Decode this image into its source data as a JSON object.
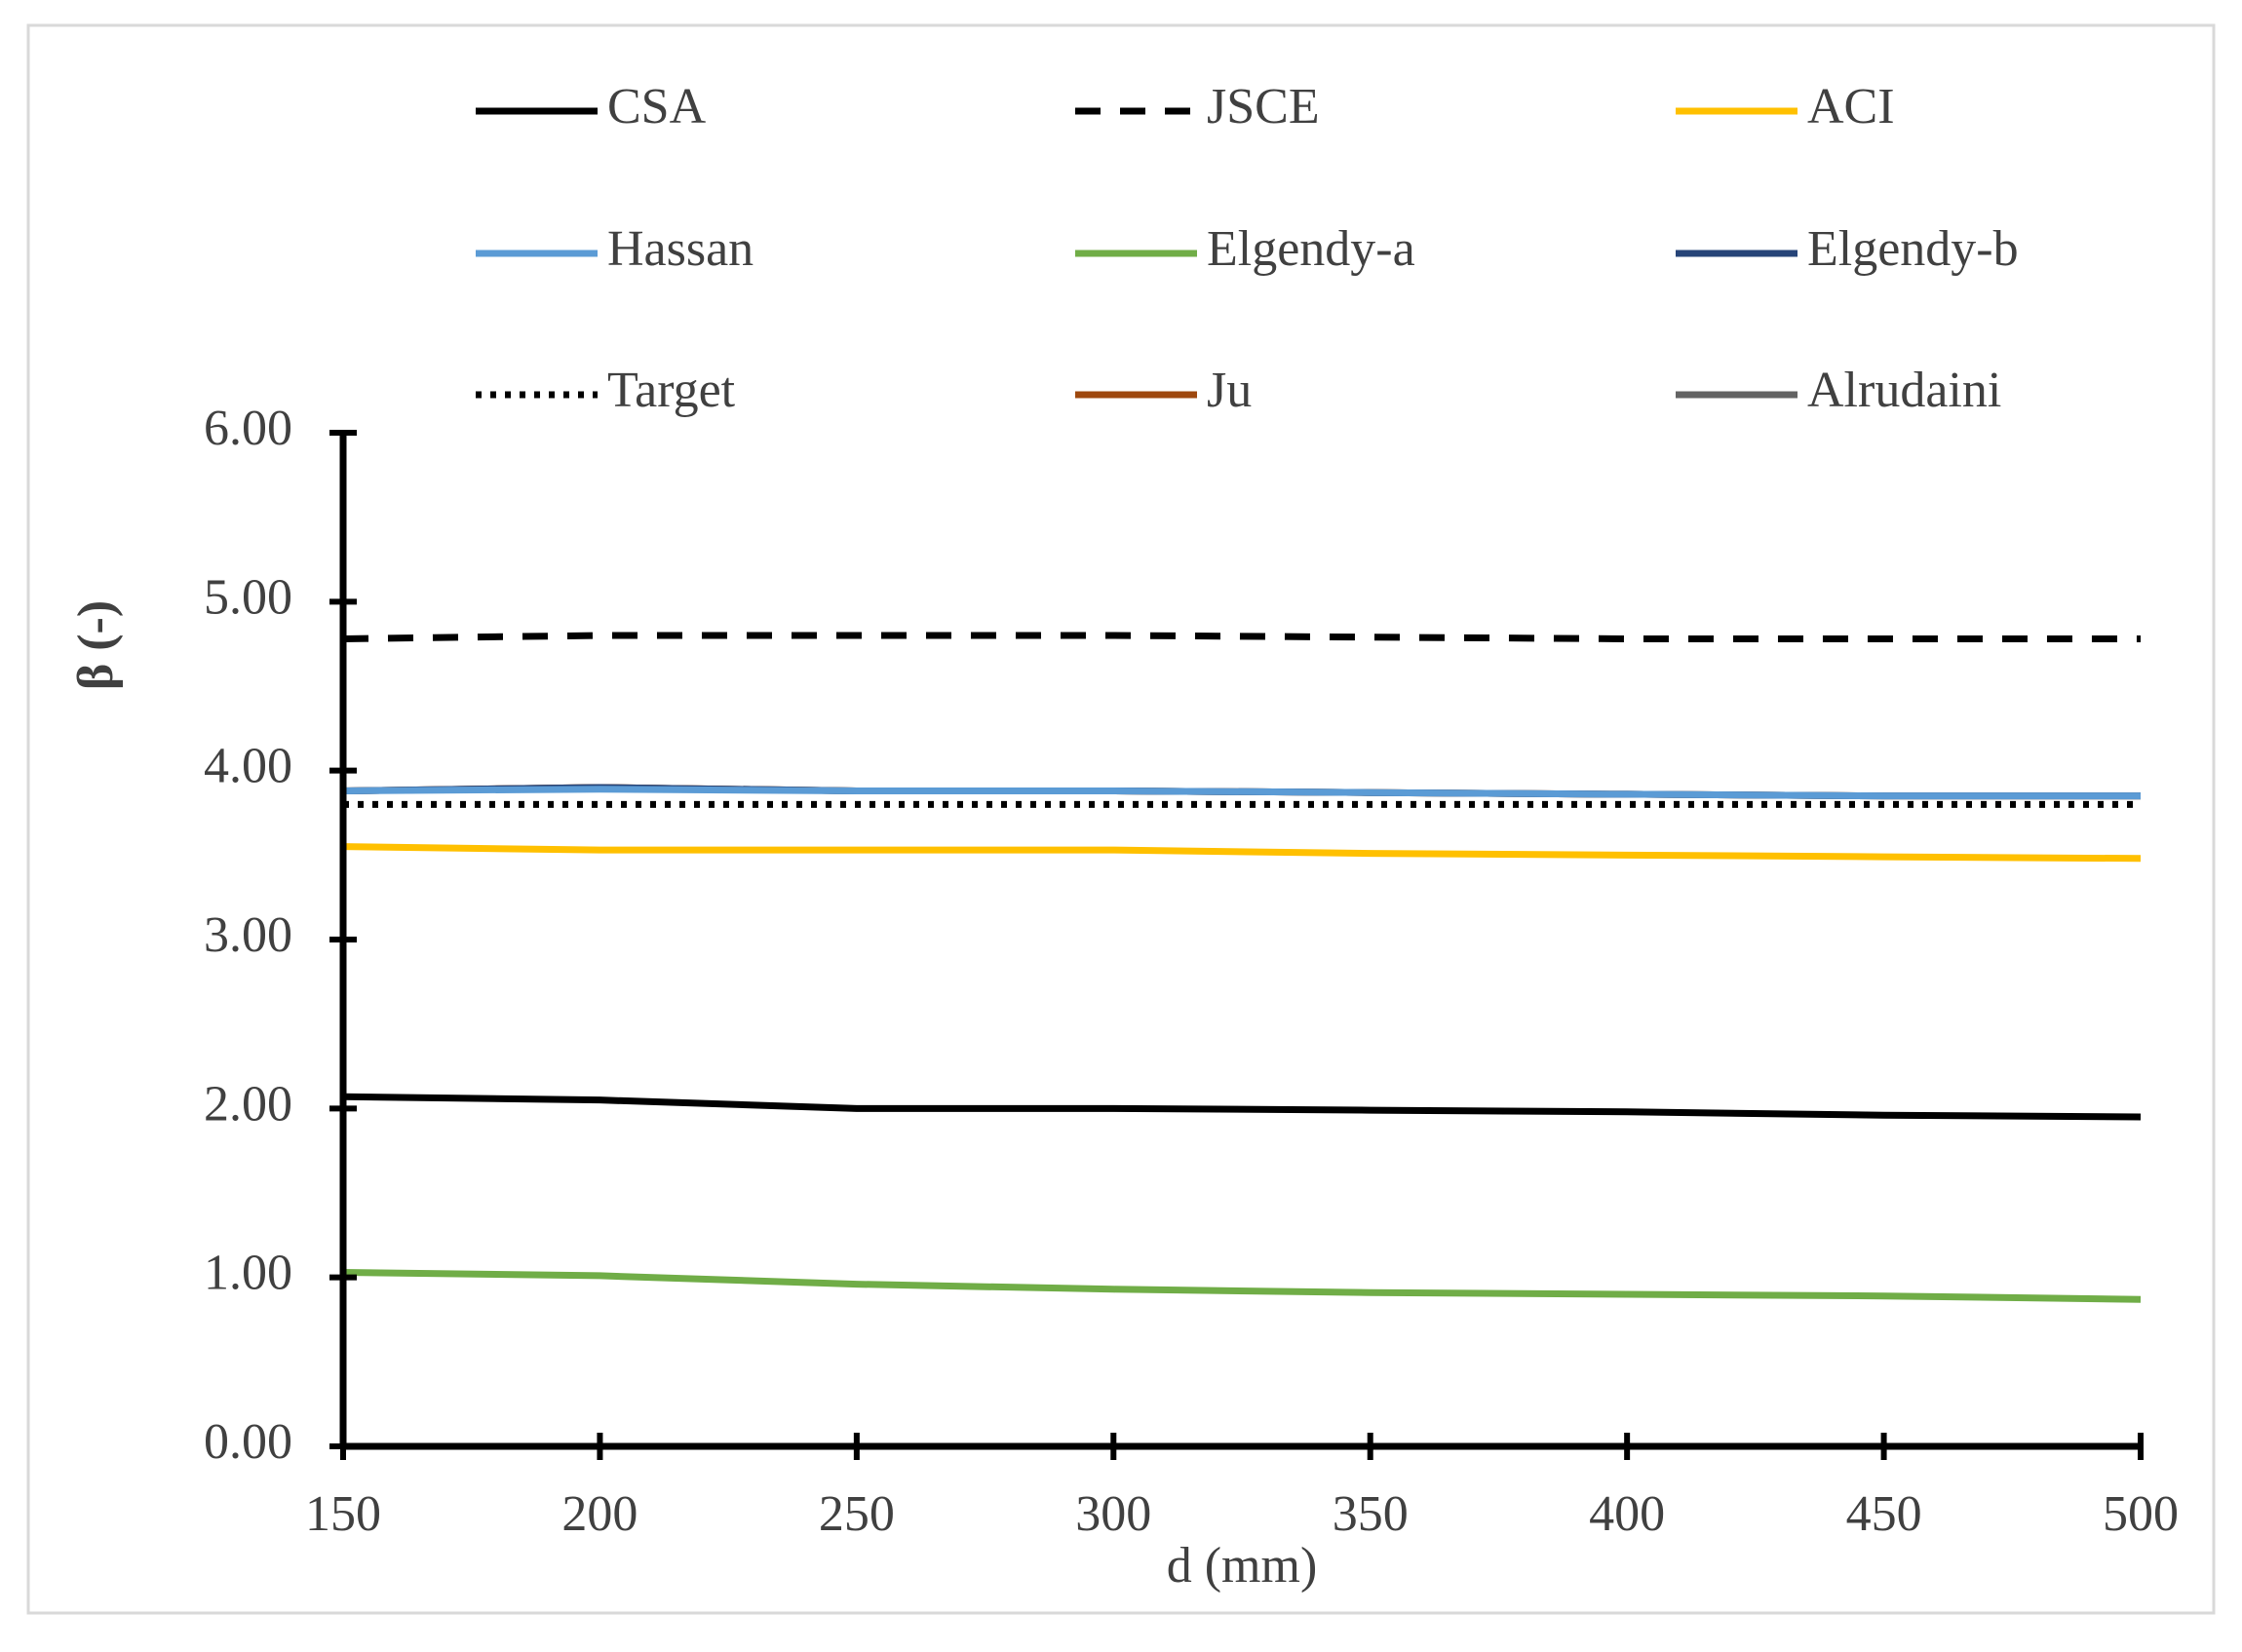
{
  "chart_data": {
    "type": "line",
    "x_label": "d (mm)",
    "y_label": "β (-)",
    "x": [
      150,
      200,
      250,
      300,
      350,
      400,
      450,
      500
    ],
    "xlim": [
      150,
      500
    ],
    "xticks": [
      150,
      200,
      250,
      300,
      350,
      400,
      450,
      500
    ],
    "ylim": [
      0,
      6
    ],
    "yticks": [
      {
        "value": 0,
        "label": "0.00"
      },
      {
        "value": 1,
        "label": "1.00"
      },
      {
        "value": 2,
        "label": "2.00"
      },
      {
        "value": 3,
        "label": "3.00"
      },
      {
        "value": 4,
        "label": "4.00"
      },
      {
        "value": 5,
        "label": "5.00"
      },
      {
        "value": 6,
        "label": "6.00"
      }
    ],
    "legend": "top",
    "series": [
      {
        "name": "CSA",
        "color": "#000000",
        "dash": "solid",
        "values": [
          2.07,
          2.05,
          2.0,
          2.0,
          1.99,
          1.98,
          1.96,
          1.95
        ]
      },
      {
        "name": "JSCE",
        "color": "#000000",
        "dash": "dashed",
        "values": [
          4.78,
          4.8,
          4.8,
          4.8,
          4.79,
          4.78,
          4.78,
          4.78
        ]
      },
      {
        "name": "ACI",
        "color": "#ffc000",
        "dash": "solid",
        "values": [
          3.55,
          3.53,
          3.53,
          3.53,
          3.51,
          3.5,
          3.49,
          3.48
        ]
      },
      {
        "name": "Hassan",
        "color": "#5b9bd5",
        "dash": "solid",
        "values": [
          3.88,
          3.89,
          3.88,
          3.88,
          3.87,
          3.86,
          3.85,
          3.85
        ]
      },
      {
        "name": "Elgendy-a",
        "color": "#70ad47",
        "dash": "solid",
        "values": [
          1.03,
          1.01,
          0.96,
          0.93,
          0.91,
          0.9,
          0.89,
          0.87
        ]
      },
      {
        "name": "Elgendy-b",
        "color": "#264478",
        "dash": "solid",
        "values": [
          3.88,
          3.9,
          3.88,
          3.88,
          3.87,
          3.86,
          3.85,
          3.85
        ]
      },
      {
        "name": "Target",
        "color": "#000000",
        "dash": "dotted",
        "values": [
          3.8,
          3.8,
          3.8,
          3.8,
          3.8,
          3.8,
          3.8,
          3.8
        ]
      },
      {
        "name": "Ju",
        "color": "#9e480e",
        "dash": "solid",
        "values": [
          3.88,
          3.9,
          3.88,
          3.88,
          3.87,
          3.86,
          3.85,
          3.85
        ]
      },
      {
        "name": "Alrudaini",
        "color": "#636363",
        "dash": "solid",
        "values": [
          3.88,
          3.9,
          3.88,
          3.88,
          3.87,
          3.86,
          3.85,
          3.85
        ]
      }
    ]
  }
}
